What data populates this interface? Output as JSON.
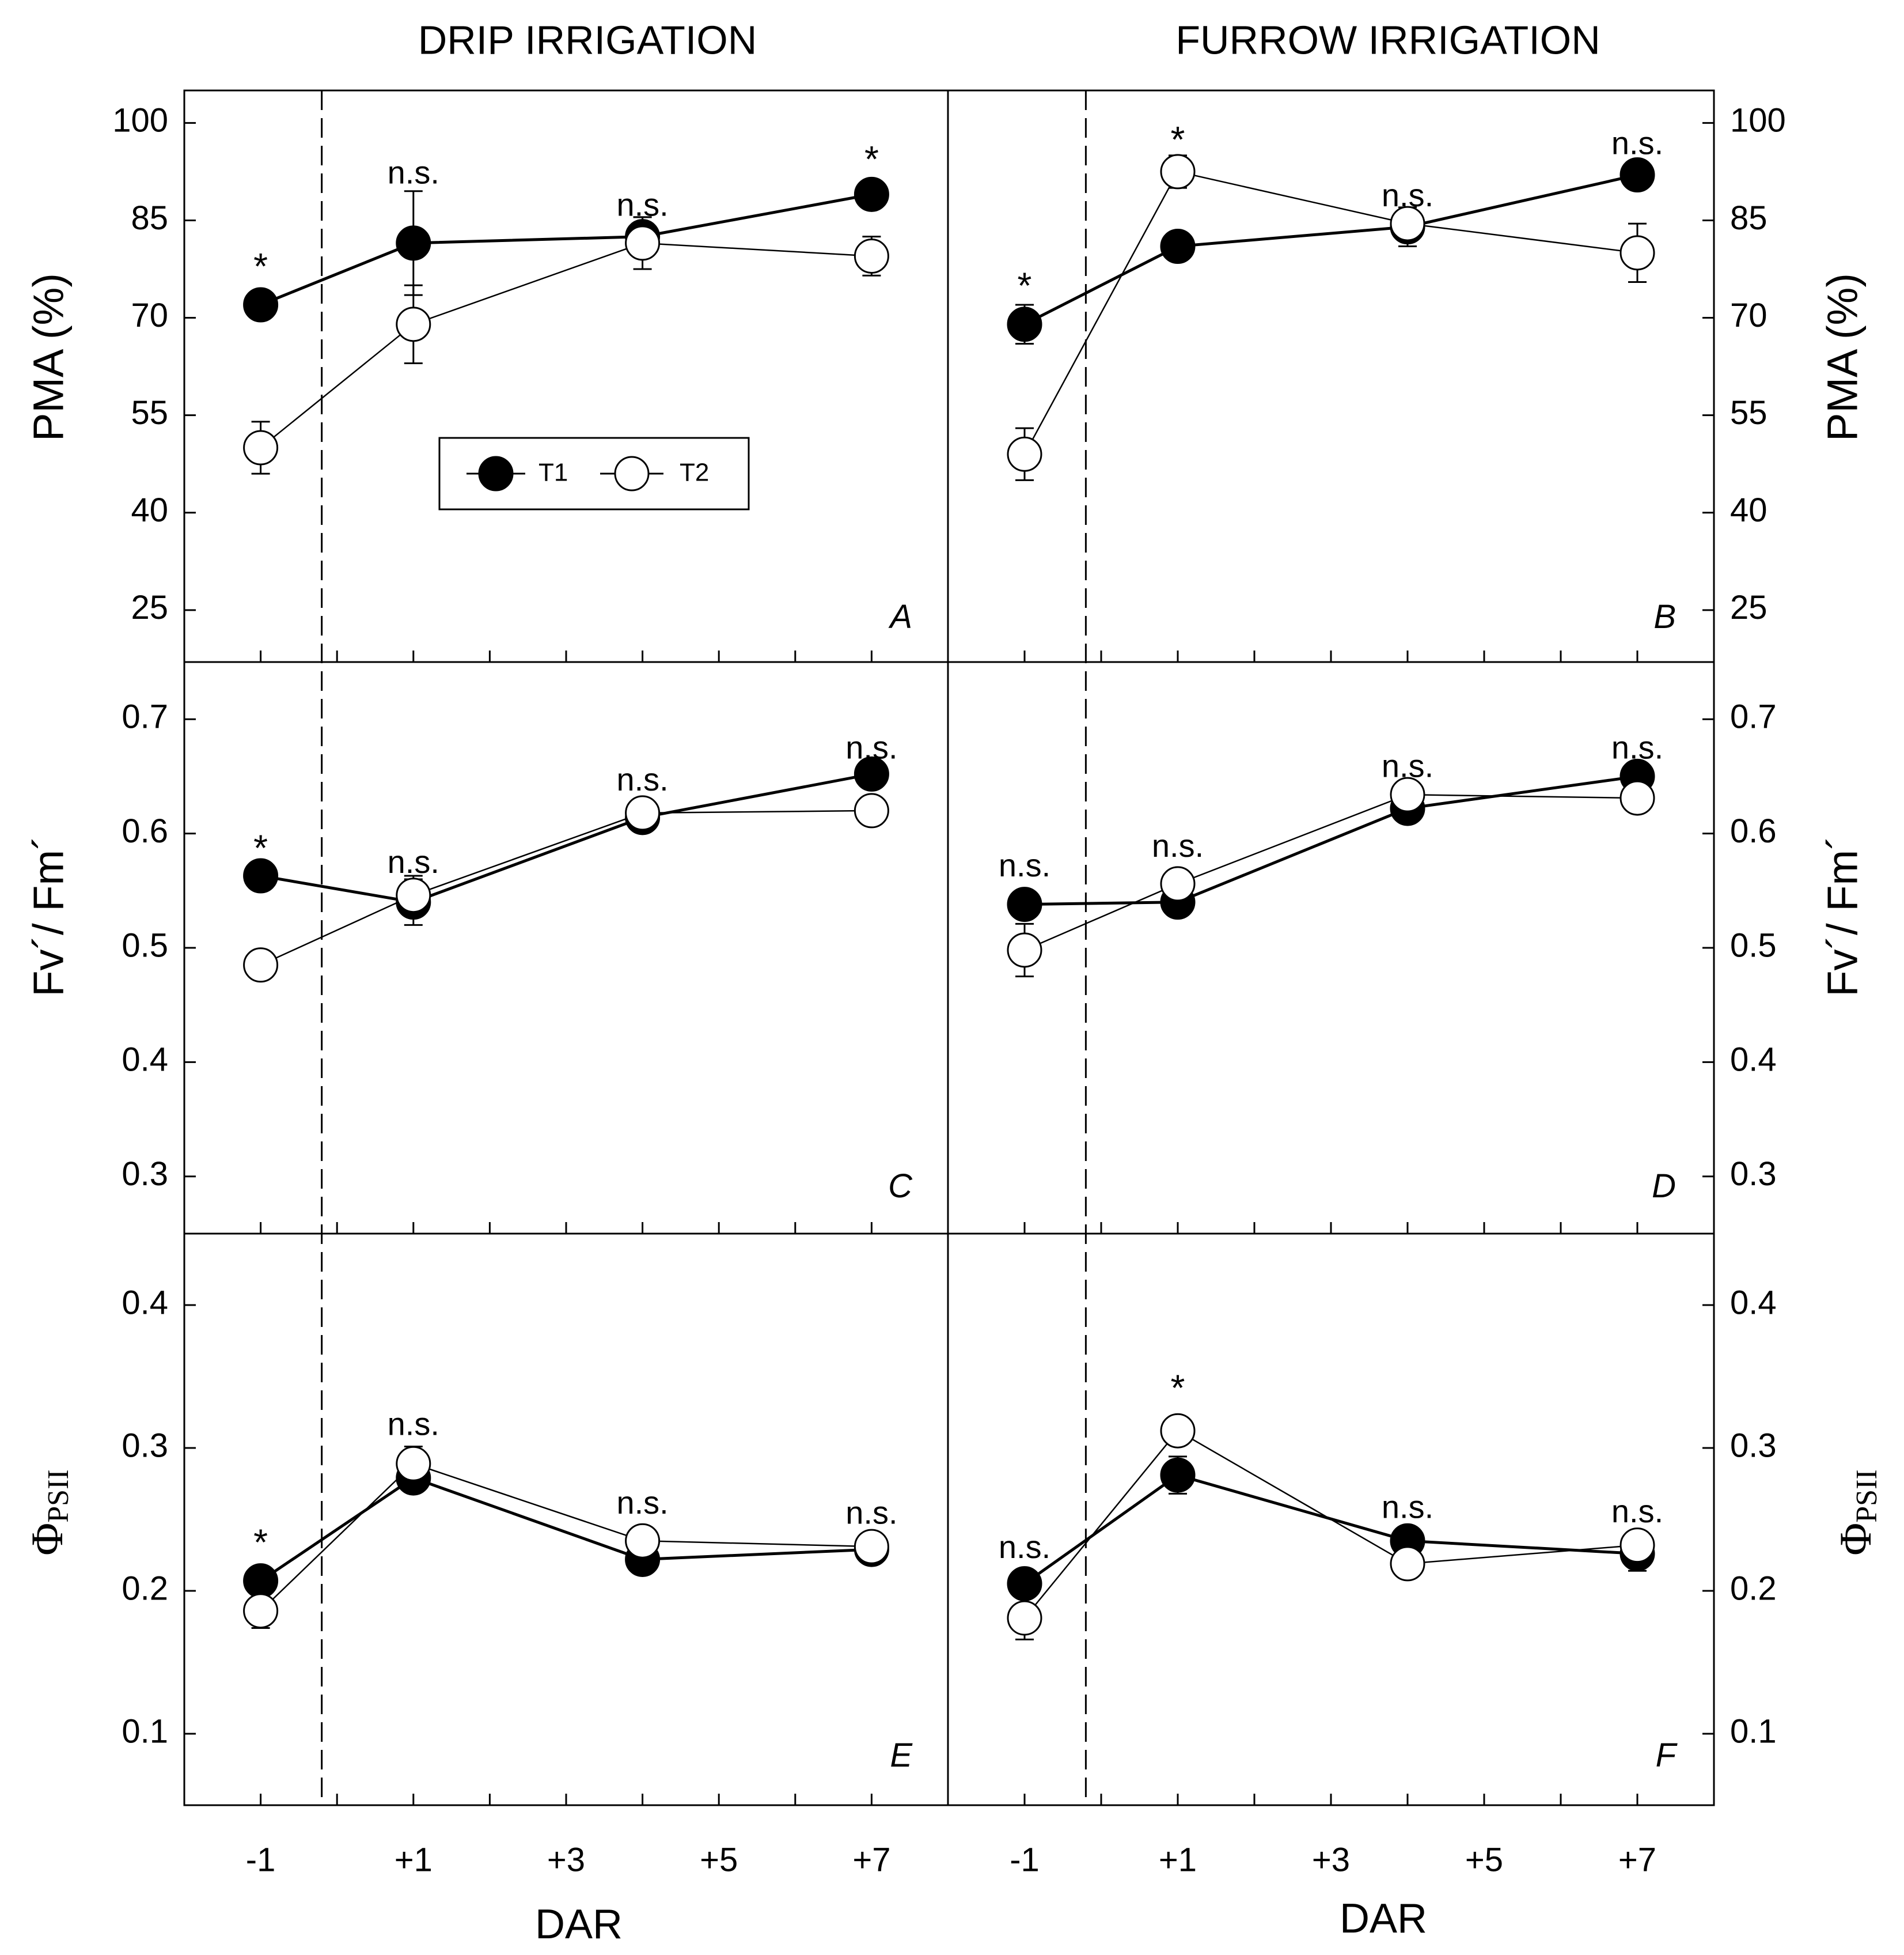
{
  "figure": {
    "column_titles": [
      "DRIP IRRIGATION",
      "FURROW IRRIGATION"
    ],
    "xlabel": "DAR",
    "x_ticks": [
      -1,
      0,
      1,
      2,
      3,
      4,
      5,
      6,
      7
    ],
    "x_tick_labels": [
      {
        "x": -1,
        "label": "-1"
      },
      {
        "x": 1,
        "label": "+1"
      },
      {
        "x": 3,
        "label": "+3"
      },
      {
        "x": 5,
        "label": "+5"
      },
      {
        "x": 7,
        "label": "+7"
      }
    ],
    "xlim": [
      -2,
      8
    ],
    "irrigation_day": -0.2,
    "legend": [
      {
        "name": "T1",
        "marker": "filled-circle",
        "color": "#000000"
      },
      {
        "name": "T2",
        "marker": "open-circle",
        "color": "#ffffff"
      }
    ],
    "rows": [
      {
        "ylabel": "PMA (%)",
        "ylim": [
          17,
          105
        ],
        "ticks": [
          25,
          40,
          55,
          70,
          85,
          100
        ],
        "tick_labels": [
          "25",
          "40",
          "55",
          "70",
          "85",
          "100"
        ]
      },
      {
        "ylabel": "Fv´/ Fm´",
        "ylim": [
          0.25,
          0.75
        ],
        "ticks": [
          0.3,
          0.4,
          0.5,
          0.6,
          0.7
        ],
        "tick_labels": [
          "0.3",
          "0.4",
          "0.5",
          "0.6",
          "0.7"
        ]
      },
      {
        "ylabel_symbol": "Φ",
        "ylabel_sub": "PSII",
        "ylim": [
          0.05,
          0.45
        ],
        "ticks": [
          0.1,
          0.2,
          0.3,
          0.4
        ],
        "tick_labels": [
          "0.1",
          "0.2",
          "0.3",
          "0.4"
        ]
      }
    ]
  },
  "chart_data": [
    {
      "type": "line",
      "panel": "A",
      "title": "DRIP IRRIGATION",
      "xlabel": "DAR",
      "ylabel": "PMA (%)",
      "row": 0,
      "col": 0,
      "ylim": [
        17,
        105
      ],
      "x": [
        -1,
        1,
        4,
        7
      ],
      "series": [
        {
          "name": "T1",
          "values": [
            72,
            81.5,
            82.5,
            89
          ],
          "err": [
            0,
            8,
            3,
            0
          ]
        },
        {
          "name": "T2",
          "values": [
            50,
            69,
            81.5,
            79.5
          ],
          "err": [
            4,
            6,
            4,
            3
          ]
        }
      ],
      "annotations": [
        {
          "x": -1,
          "y": 77.5,
          "text": "*"
        },
        {
          "x": 1,
          "y": 92,
          "text": "n.s."
        },
        {
          "x": 4,
          "y": 87,
          "text": "n.s."
        },
        {
          "x": 7,
          "y": 94,
          "text": "*"
        }
      ]
    },
    {
      "type": "line",
      "panel": "B",
      "title": "FURROW IRRIGATION",
      "xlabel": "DAR",
      "ylabel": "PMA (%)",
      "row": 0,
      "col": 1,
      "ylim": [
        17,
        105
      ],
      "x": [
        -1,
        1,
        4,
        7
      ],
      "series": [
        {
          "name": "T1",
          "values": [
            69,
            81,
            84,
            92
          ],
          "err": [
            3,
            0,
            3,
            0
          ]
        },
        {
          "name": "T2",
          "values": [
            49,
            92.5,
            84.5,
            80
          ],
          "err": [
            4,
            2.5,
            2,
            4.5
          ]
        }
      ],
      "annotations": [
        {
          "x": -1,
          "y": 74.5,
          "text": "*"
        },
        {
          "x": 1,
          "y": 97,
          "text": "*"
        },
        {
          "x": 4,
          "y": 88.5,
          "text": "n.s."
        },
        {
          "x": 7,
          "y": 96.5,
          "text": "n.s."
        }
      ]
    },
    {
      "type": "line",
      "panel": "C",
      "xlabel": "DAR",
      "ylabel": "Fv´/ Fm´",
      "row": 1,
      "col": 0,
      "ylim": [
        0.25,
        0.75
      ],
      "x": [
        -1,
        1,
        4,
        7
      ],
      "series": [
        {
          "name": "T1",
          "values": [
            0.563,
            0.54,
            0.614,
            0.652
          ],
          "err": [
            0,
            0.02,
            0,
            0
          ]
        },
        {
          "name": "T2",
          "values": [
            0.485,
            0.546,
            0.618,
            0.62
          ],
          "err": [
            0,
            0.017,
            0,
            0
          ]
        }
      ],
      "annotations": [
        {
          "x": -1,
          "y": 0.585,
          "text": "*"
        },
        {
          "x": 1,
          "y": 0.573,
          "text": "n.s."
        },
        {
          "x": 4,
          "y": 0.645,
          "text": "n.s."
        },
        {
          "x": 7,
          "y": 0.673,
          "text": "n.s."
        }
      ]
    },
    {
      "type": "line",
      "panel": "D",
      "xlabel": "DAR",
      "ylabel": "Fv´/ Fm´",
      "row": 1,
      "col": 1,
      "ylim": [
        0.25,
        0.75
      ],
      "x": [
        -1,
        1,
        4,
        7
      ],
      "series": [
        {
          "name": "T1",
          "values": [
            0.538,
            0.54,
            0.622,
            0.65
          ],
          "err": [
            0,
            0,
            0,
            0
          ]
        },
        {
          "name": "T2",
          "values": [
            0.498,
            0.556,
            0.634,
            0.631
          ],
          "err": [
            0.023,
            0,
            0,
            0
          ]
        }
      ],
      "annotations": [
        {
          "x": -1,
          "y": 0.57,
          "text": "n.s."
        },
        {
          "x": 1,
          "y": 0.587,
          "text": "n.s."
        },
        {
          "x": 4,
          "y": 0.657,
          "text": "n.s."
        },
        {
          "x": 7,
          "y": 0.673,
          "text": "n.s."
        }
      ]
    },
    {
      "type": "line",
      "panel": "E",
      "xlabel": "DAR",
      "ylabel": "ΦPSII",
      "row": 2,
      "col": 0,
      "ylim": [
        0.05,
        0.45
      ],
      "x": [
        -1,
        1,
        4,
        7
      ],
      "series": [
        {
          "name": "T1",
          "values": [
            0.207,
            0.279,
            0.222,
            0.229
          ],
          "err": [
            0,
            0,
            0,
            0
          ]
        },
        {
          "name": "T2",
          "values": [
            0.186,
            0.289,
            0.235,
            0.231
          ],
          "err": [
            0.012,
            0.012,
            0,
            0
          ]
        }
      ],
      "annotations": [
        {
          "x": -1,
          "y": 0.232,
          "text": "*"
        },
        {
          "x": 1,
          "y": 0.315,
          "text": "n.s."
        },
        {
          "x": 4,
          "y": 0.26,
          "text": "n.s."
        },
        {
          "x": 7,
          "y": 0.253,
          "text": "n.s."
        }
      ]
    },
    {
      "type": "line",
      "panel": "F",
      "xlabel": "DAR",
      "ylabel": "ΦPSII",
      "row": 2,
      "col": 1,
      "ylim": [
        0.05,
        0.45
      ],
      "x": [
        -1,
        1,
        4,
        7
      ],
      "series": [
        {
          "name": "T1",
          "values": [
            0.205,
            0.281,
            0.235,
            0.226
          ],
          "err": [
            0,
            0.013,
            0,
            0.012
          ]
        },
        {
          "name": "T2",
          "values": [
            0.181,
            0.312,
            0.219,
            0.232
          ],
          "err": [
            0.015,
            0,
            0,
            0
          ]
        }
      ],
      "annotations": [
        {
          "x": -1,
          "y": 0.229,
          "text": "n.s."
        },
        {
          "x": 1,
          "y": 0.34,
          "text": "*"
        },
        {
          "x": 4,
          "y": 0.257,
          "text": "n.s."
        },
        {
          "x": 7,
          "y": 0.254,
          "text": "n.s."
        }
      ]
    }
  ]
}
